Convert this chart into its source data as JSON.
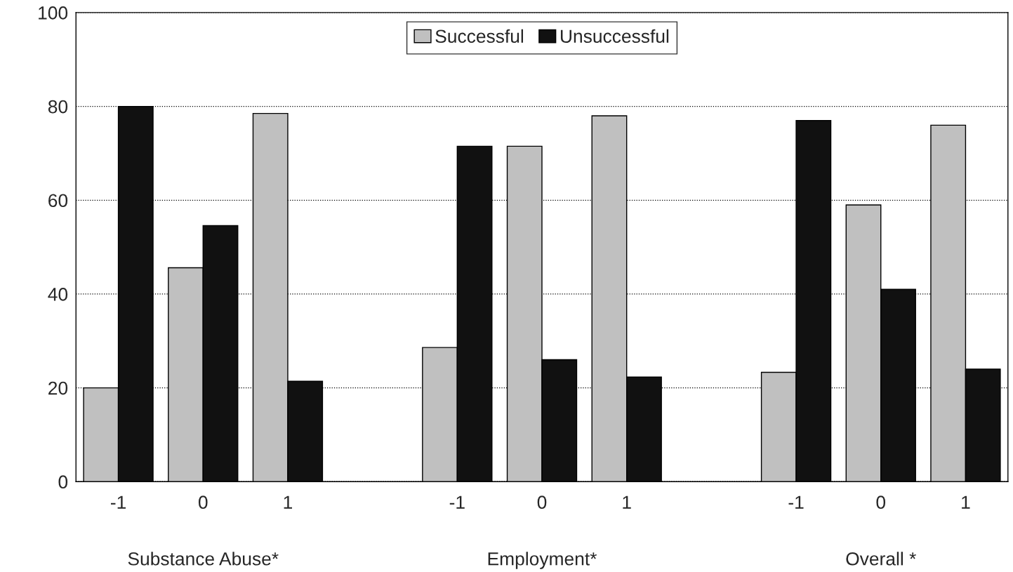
{
  "chart_data": {
    "type": "bar",
    "categories": [
      "-1",
      "0",
      "1",
      null,
      "-1",
      "0",
      "1",
      null,
      "-1",
      "0",
      "1"
    ],
    "series": [
      {
        "name": "Successful",
        "color": "#c0c0c0",
        "values": [
          20,
          45.6,
          78.5,
          null,
          28.6,
          71.5,
          78,
          null,
          23.3,
          59,
          76
        ]
      },
      {
        "name": "Unsuccessful",
        "color": "#111111",
        "values": [
          80,
          54.6,
          21.4,
          null,
          71.5,
          26,
          22.3,
          null,
          77,
          41,
          24
        ]
      }
    ],
    "ylim": [
      0,
      100
    ],
    "yticks": [
      0,
      20,
      40,
      60,
      80,
      100
    ],
    "grid": "y",
    "legend": "top",
    "annotations": [
      "Substance Abuse*",
      "Employment*",
      "Overall *"
    ]
  }
}
